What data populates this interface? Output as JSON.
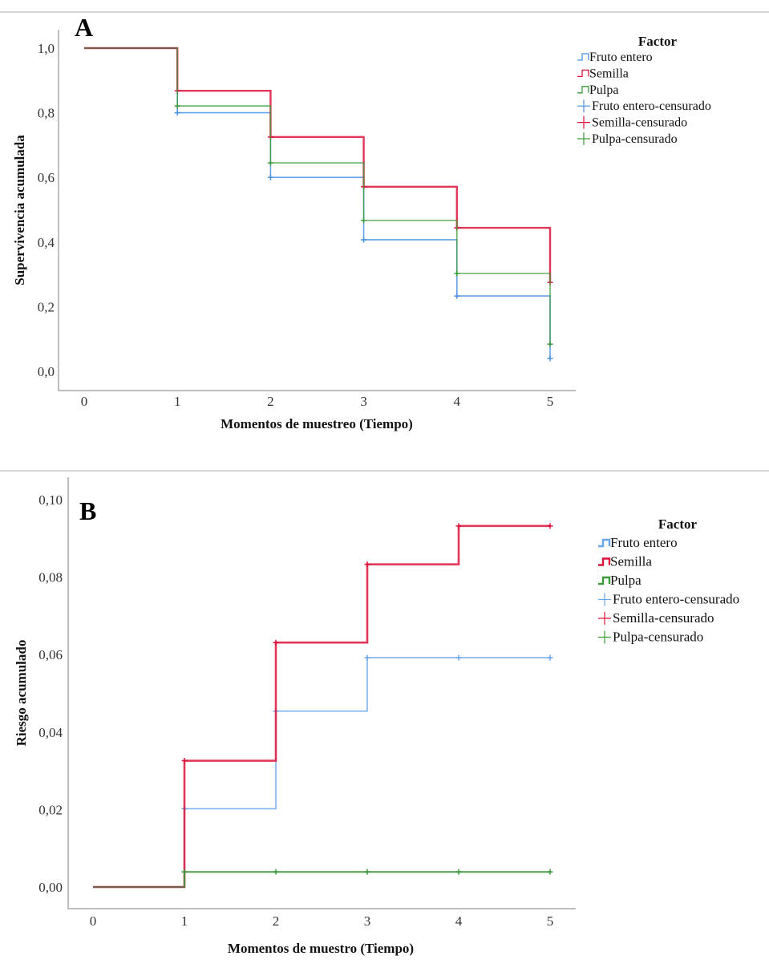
{
  "chart_data": [
    {
      "type": "line",
      "subtype": "step (Kaplan-Meier survival)",
      "panel_label": "A",
      "title": "",
      "xlabel": "Momentos de muestreo (Tiempo)",
      "ylabel": "Supervivencia acumulada",
      "x_ticks": [
        "0",
        "1",
        "2",
        "3",
        "4",
        "5"
      ],
      "y_ticks": [
        "0,0",
        "0,2",
        "0,4",
        "0,6",
        "0,8",
        "1,0"
      ],
      "xlim": [
        0,
        5
      ],
      "ylim": [
        0,
        1.0
      ],
      "grid": false,
      "legend_title": "Factor",
      "legend_position": "top-right",
      "legend": [
        "Fruto entero",
        "Semilla",
        "Pulpa",
        "Fruto entero-censurado",
        "Semilla-censurado",
        "Pulpa-censurado"
      ],
      "x": [
        0,
        1,
        2,
        3,
        4,
        5
      ],
      "series": [
        {
          "name": "Fruto entero",
          "color": "#4a90e2",
          "values": [
            1.0,
            0.8,
            0.6,
            0.407,
            0.233,
            0.04
          ]
        },
        {
          "name": "Semilla",
          "color": "#dc143c",
          "values": [
            1.0,
            0.868,
            0.725,
            0.571,
            0.444,
            0.275
          ]
        },
        {
          "name": "Pulpa",
          "color": "#3a9a3a",
          "values": [
            1.0,
            0.821,
            0.645,
            0.467,
            0.303,
            0.084
          ]
        }
      ],
      "censored_times": [
        1,
        2,
        3,
        4,
        5
      ]
    },
    {
      "type": "line",
      "subtype": "step (cumulative hazard)",
      "panel_label": "B",
      "title": "",
      "xlabel": "Momentos de muestro (Tiempo)",
      "ylabel": "Riesgo acumulado",
      "x_ticks": [
        "0",
        "1",
        "2",
        "3",
        "4",
        "5"
      ],
      "y_ticks": [
        "0,00",
        "0,02",
        "0,04",
        "0,06",
        "0,08",
        "0,10"
      ],
      "xlim": [
        0,
        5
      ],
      "ylim": [
        0,
        0.1
      ],
      "grid": false,
      "legend_title": "Factor",
      "legend_position": "top-right",
      "legend": [
        "Fruto entero",
        "Semilla",
        "Pulpa",
        "Fruto entero-censurado",
        "Semilla-censurado",
        "Pulpa-censurado"
      ],
      "x": [
        0,
        1,
        2,
        3,
        4,
        5
      ],
      "series": [
        {
          "name": "Fruto entero",
          "color": "#6aa6ea",
          "values": [
            0.0,
            0.0202,
            0.0454,
            0.0592,
            0.0592,
            0.0592
          ]
        },
        {
          "name": "Semilla",
          "color": "#dc143c",
          "values": [
            0.0,
            0.0326,
            0.0631,
            0.0833,
            0.0932,
            0.0932
          ]
        },
        {
          "name": "Pulpa",
          "color": "#3a9a3a",
          "values": [
            0.0,
            0.0039,
            0.0039,
            0.0039,
            0.0039,
            0.0039
          ]
        }
      ],
      "censored_times": [
        1,
        2,
        3,
        4,
        5
      ]
    }
  ]
}
